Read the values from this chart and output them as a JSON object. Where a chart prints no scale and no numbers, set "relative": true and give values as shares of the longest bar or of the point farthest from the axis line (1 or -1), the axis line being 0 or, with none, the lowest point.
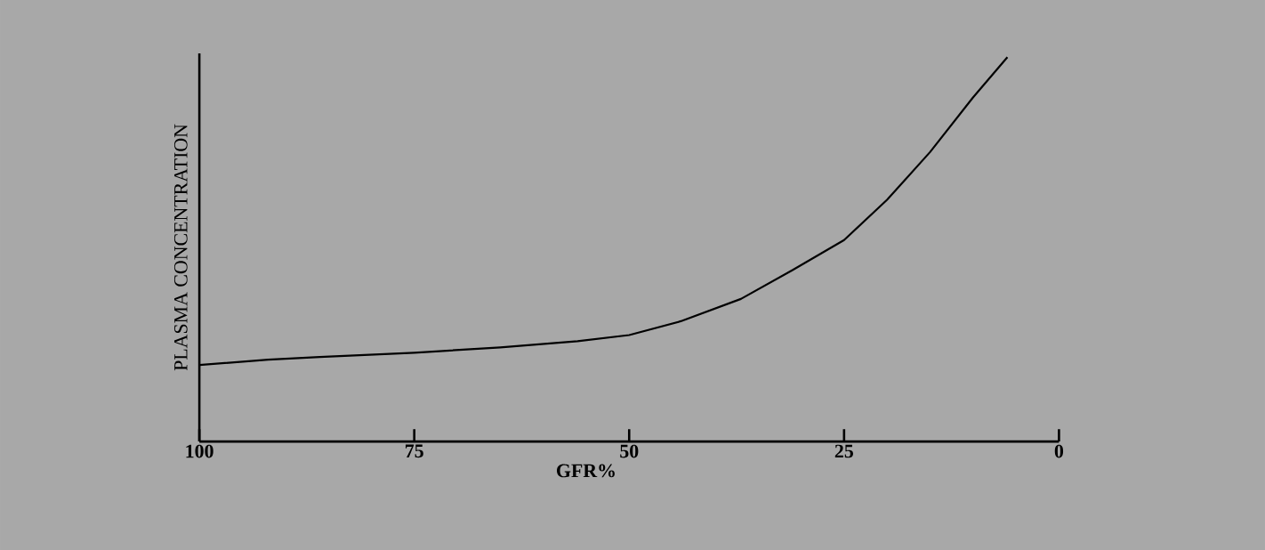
{
  "chart_data": {
    "type": "line",
    "relative": true,
    "xlabel": "GFR%",
    "ylabel": "PLASMA CONCENTRATION",
    "x": [
      100,
      92,
      86,
      75,
      65,
      56,
      50,
      44,
      37,
      31,
      25,
      20,
      15,
      10,
      6
    ],
    "series": [
      {
        "color": "#000000",
        "values": [
          0.199,
          0.213,
          0.22,
          0.231,
          0.245,
          0.261,
          0.277,
          0.313,
          0.371,
          0.446,
          0.524,
          0.629,
          0.753,
          0.895,
          1.0
        ]
      }
    ],
    "xlim": [
      100,
      0
    ],
    "xticks": [
      100,
      75,
      50,
      25,
      0
    ],
    "grid": false,
    "marker": "none",
    "line_style": "solid"
  }
}
